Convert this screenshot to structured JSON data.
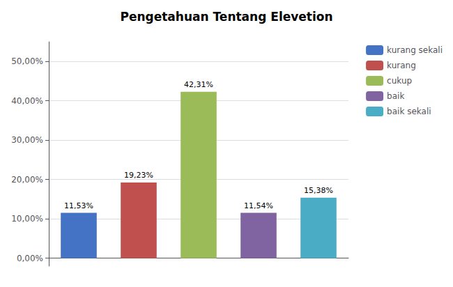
{
  "chart_data": {
    "type": "bar",
    "title": "Pengetahuan Tentang Elevetion",
    "categories": [
      "kurang sekali",
      "kurang",
      "cukup",
      "baik",
      "baik sekali"
    ],
    "values": [
      11.53,
      19.23,
      42.31,
      11.54,
      15.38
    ],
    "value_labels": [
      "11,53%",
      "19,23%",
      "42,31%",
      "11,54%",
      "15,38%"
    ],
    "colors": [
      "#4472c4",
      "#c0504d",
      "#9bbb59",
      "#8064a2",
      "#4bacc6"
    ],
    "ylim": [
      -2,
      55
    ],
    "yticks": [
      {
        "value": 0,
        "label": "0,00%"
      },
      {
        "value": 10,
        "label": "10,00%"
      },
      {
        "value": 20,
        "label": "20,00%"
      },
      {
        "value": 30,
        "label": "30,00%"
      },
      {
        "value": 40,
        "label": "40,00%"
      },
      {
        "value": 50,
        "label": "50,00%"
      }
    ],
    "grid": true,
    "legend": "right",
    "data_labels": true,
    "tick_labels": "y"
  }
}
